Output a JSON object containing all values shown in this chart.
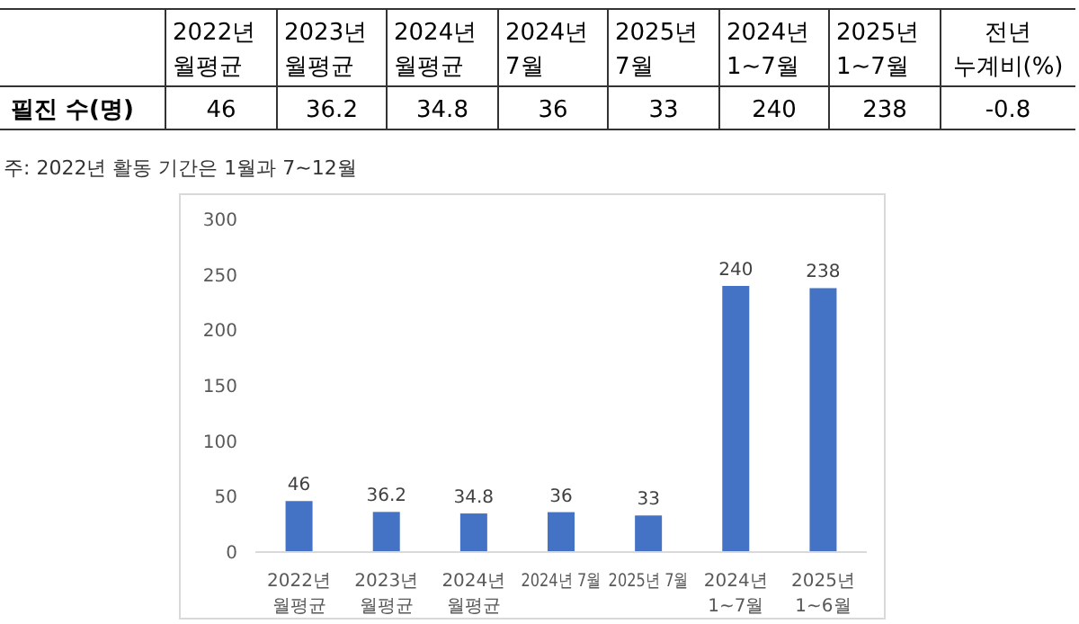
{
  "chart_data": [
    {
      "type": "other",
      "categories": [
        "2022년\n월평균",
        "2023년\n월평균",
        "2024년\n월평균",
        "2024년\n7월",
        "2025년\n7월",
        "2024년\n1~7월",
        "2025년\n1~7월",
        "전년\n누계비(%)"
      ],
      "ylabel": "필진 수(명)",
      "values": [
        46,
        36.2,
        34.8,
        36,
        33,
        240,
        238,
        -0.8
      ],
      "data_labels": true,
      "annotations": [
        "주: 2022년 활동 기간은 1월과 7~12월"
      ]
    },
    {
      "type": "bar",
      "categories": [
        "2022년\n월평균",
        "2023년\n월평균",
        "2024년\n월평균",
        "2024년 7월",
        "2025년 7월",
        "2024년\n1~7월",
        "2025년\n1~6월"
      ],
      "values": [
        46,
        36.2,
        34.8,
        36,
        33,
        240,
        238
      ],
      "color": "#4472c4",
      "ylim": [
        0,
        300
      ],
      "yticks": [
        0,
        50,
        100,
        150,
        200,
        250,
        300
      ],
      "data_labels": true,
      "grid": false
    }
  ]
}
